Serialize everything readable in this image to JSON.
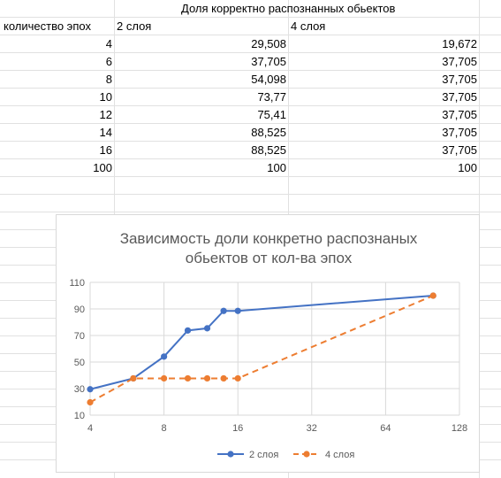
{
  "table": {
    "header_group": "Доля корректно распознанных обьектов",
    "col_epochs": "количество эпох",
    "col_2": "2 слоя",
    "col_4": "4 слоя",
    "rows": [
      {
        "epochs": "4",
        "l2": "29,508",
        "l4": "19,672"
      },
      {
        "epochs": "6",
        "l2": "37,705",
        "l4": "37,705"
      },
      {
        "epochs": "8",
        "l2": "54,098",
        "l4": "37,705"
      },
      {
        "epochs": "10",
        "l2": "73,77",
        "l4": "37,705"
      },
      {
        "epochs": "12",
        "l2": "75,41",
        "l4": "37,705"
      },
      {
        "epochs": "14",
        "l2": "88,525",
        "l4": "37,705"
      },
      {
        "epochs": "16",
        "l2": "88,525",
        "l4": "37,705"
      },
      {
        "epochs": "100",
        "l2": "100",
        "l4": "100"
      }
    ]
  },
  "chart_data": {
    "type": "scatter",
    "title_line1": "Зависимость доли конкретно распознаных",
    "title_line2": "обьектов от кол-ва эпох",
    "x_scale": "log2",
    "xlim": [
      4,
      128
    ],
    "x_ticks": [
      4,
      8,
      16,
      32,
      64,
      128
    ],
    "ylim": [
      10,
      110
    ],
    "y_ticks": [
      10,
      30,
      50,
      70,
      90,
      110
    ],
    "grid": true,
    "legend_position": "bottom",
    "series": [
      {
        "name": "2 слоя",
        "color": "#4472c4",
        "dash": "solid",
        "x": [
          4,
          6,
          8,
          10,
          12,
          14,
          16,
          100
        ],
        "y": [
          29.508,
          37.705,
          54.098,
          73.77,
          75.41,
          88.525,
          88.525,
          100
        ]
      },
      {
        "name": "4 слоя",
        "color": "#ed7d31",
        "dash": "dashed",
        "x": [
          4,
          6,
          8,
          10,
          12,
          14,
          16,
          100
        ],
        "y": [
          19.672,
          37.705,
          37.705,
          37.705,
          37.705,
          37.705,
          37.705,
          100
        ]
      }
    ]
  }
}
